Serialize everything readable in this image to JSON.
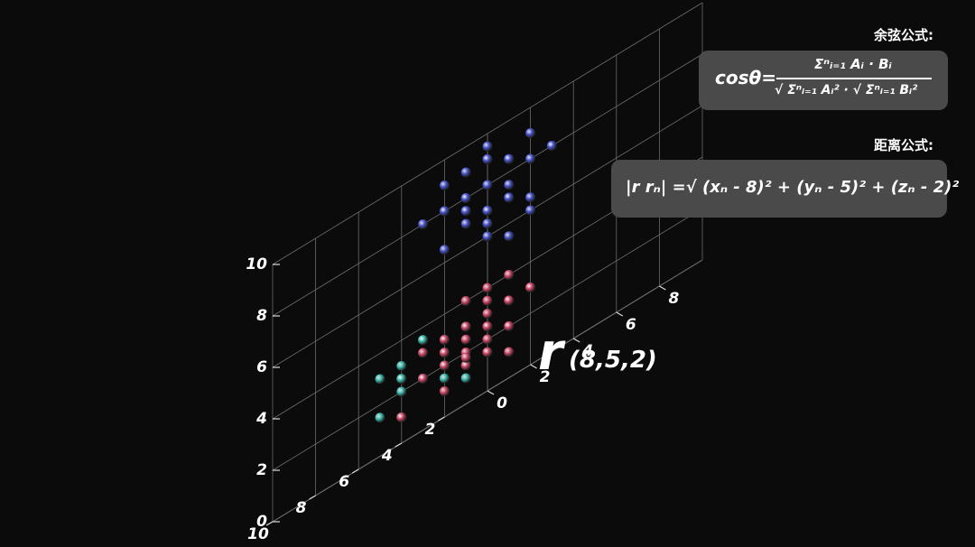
{
  "chart_data": {
    "type": "scatter",
    "dimensions": 3,
    "axes": {
      "x": {
        "range": [
          0,
          10
        ],
        "ticks": [
          "2",
          "4",
          "6",
          "8",
          "10"
        ]
      },
      "y": {
        "range": [
          0,
          10
        ],
        "ticks": [
          "0",
          "2",
          "4",
          "6",
          "8"
        ]
      },
      "z": {
        "range": [
          0,
          10
        ],
        "ticks": [
          "0",
          "2",
          "4",
          "6",
          "8",
          "10"
        ]
      }
    },
    "grid": true,
    "series": [
      {
        "color": "#d24a6a",
        "points": [
          [
            1,
            1,
            1.5
          ],
          [
            2,
            1,
            2.5
          ],
          [
            1,
            2,
            3
          ],
          [
            2,
            2,
            2
          ],
          [
            3,
            2,
            3
          ],
          [
            2,
            3,
            2
          ],
          [
            3,
            3,
            1.5
          ],
          [
            2,
            2,
            4
          ],
          [
            3,
            3,
            3
          ],
          [
            4,
            2,
            2.5
          ],
          [
            4,
            3,
            2
          ],
          [
            3,
            4,
            1
          ],
          [
            4,
            4,
            2.5
          ],
          [
            3,
            1,
            1
          ],
          [
            5,
            3,
            3
          ],
          [
            4,
            5,
            2
          ],
          [
            5,
            4,
            1.5
          ],
          [
            2,
            4,
            3
          ],
          [
            5,
            5,
            2.5
          ],
          [
            4,
            3,
            4
          ],
          [
            3,
            5,
            3
          ],
          [
            6,
            4,
            2
          ],
          [
            5,
            6,
            3
          ],
          [
            2,
            3,
            4
          ],
          [
            4,
            4,
            3.5
          ],
          [
            3,
            2,
            1.8
          ],
          [
            5,
            2,
            2
          ],
          [
            6,
            3,
            3
          ],
          [
            6,
            2,
            1
          ]
        ]
      },
      {
        "color": "#4a57d0",
        "points": [
          [
            5,
            5,
            8
          ],
          [
            6,
            5,
            9
          ],
          [
            5,
            6,
            8.5
          ],
          [
            6,
            6,
            9.5
          ],
          [
            4,
            6,
            8
          ],
          [
            6,
            4,
            9
          ],
          [
            5,
            4,
            7
          ],
          [
            7,
            6,
            8
          ],
          [
            6,
            7,
            7
          ],
          [
            5,
            7,
            9
          ],
          [
            7,
            5,
            6.5
          ],
          [
            4,
            5,
            7.5
          ],
          [
            5,
            5,
            6
          ],
          [
            6,
            6,
            7
          ],
          [
            5,
            8,
            8
          ],
          [
            7,
            7,
            9
          ],
          [
            8,
            6,
            8
          ],
          [
            6,
            8,
            6.5
          ],
          [
            4,
            4,
            6.5
          ],
          [
            7,
            4,
            8
          ],
          [
            5,
            6,
            5.5
          ],
          [
            6,
            5,
            7.5
          ],
          [
            6,
            5,
            8
          ],
          [
            5,
            5,
            7
          ],
          [
            7,
            6,
            7.5
          ],
          [
            6,
            7,
            8.5
          ],
          [
            4,
            7,
            8
          ],
          [
            8,
            8,
            9
          ],
          [
            7,
            8,
            7
          ],
          [
            3,
            3,
            7
          ],
          [
            4,
            6,
            6
          ],
          [
            5,
            3,
            8
          ]
        ]
      },
      {
        "color": "#3fbcb0",
        "points": [
          [
            8,
            5,
            2
          ],
          [
            8,
            6,
            1.5
          ],
          [
            9,
            5,
            2.5
          ],
          [
            8,
            4,
            2.5
          ],
          [
            9,
            6,
            2
          ],
          [
            7,
            5,
            2
          ],
          [
            8,
            6,
            3
          ],
          [
            9,
            4,
            1.5
          ],
          [
            8,
            5,
            3.5
          ],
          [
            9,
            5,
            1
          ],
          [
            7,
            6,
            1
          ],
          [
            8,
            4,
            1
          ],
          [
            9,
            7,
            2.5
          ],
          [
            7,
            4,
            2
          ],
          [
            9,
            6,
            3.5
          ],
          [
            8,
            7,
            1.5
          ],
          [
            9,
            5,
            3
          ],
          [
            8,
            6,
            2.5
          ],
          [
            10,
            6,
            2
          ],
          [
            7,
            6,
            3
          ],
          [
            8,
            7,
            3
          ],
          [
            9,
            4,
            3
          ]
        ]
      }
    ]
  },
  "headers": {
    "cosine": "余弦公式:",
    "distance": "距离公式:"
  },
  "cosine_formula": {
    "lhs": "cosθ=",
    "numerator": "Σⁿᵢ₌₁ Aᵢ · Bᵢ",
    "denominator": "√ Σⁿᵢ₌₁ Aᵢ² · √ Σⁿᵢ₌₁ Bᵢ²"
  },
  "distance_formula": "|r rₙ| =√ (xₙ - 8)² + (yₙ - 5)² + (zₙ - 2)²",
  "annotation": {
    "symbol": "r",
    "coords": "(8,5,2)"
  }
}
